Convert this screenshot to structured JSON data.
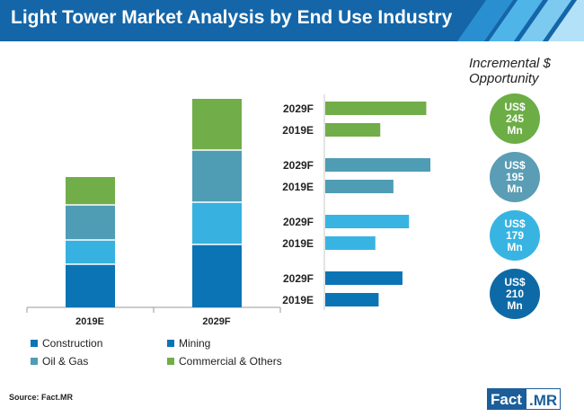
{
  "header": {
    "title": "Light Tower Market Analysis by End Use Industry"
  },
  "colors": {
    "header_bg": "#1466a8",
    "construction": "#0b74b5",
    "mining": "#0b74b5",
    "oil_gas": "#4f9cb5",
    "commercial": "#71ad48",
    "circle_commercial": "#6cad45",
    "circle_oilgas": "#5a9db5",
    "circle_mining": "#38b4e2",
    "circle_construction": "#0e6aa6"
  },
  "chart_data": [
    {
      "type": "bar",
      "stacked": true,
      "categories": [
        "2019E",
        "2029F"
      ],
      "series": [
        {
          "name": "Construction",
          "values": [
            48,
            70
          ]
        },
        {
          "name": "Mining",
          "values": [
            27,
            47
          ]
        },
        {
          "name": "Oil & Gas",
          "values": [
            39,
            58
          ]
        },
        {
          "name": "Commercial & Others",
          "values": [
            31,
            57
          ]
        }
      ],
      "xlabel": "",
      "ylabel": "",
      "ylim": [
        0,
        235
      ],
      "legend": [
        {
          "label": "Construction",
          "color": "#0b74b5"
        },
        {
          "label": "Mining",
          "color": "#0b74b5"
        },
        {
          "label": "Oil & Gas",
          "color": "#4f9cb5"
        },
        {
          "label": "Commercial & Others",
          "color": "#71ad48"
        }
      ]
    },
    {
      "type": "bar",
      "orientation": "horizontal",
      "groups": [
        {
          "segment": "Commercial & Others",
          "color": "#71ad48",
          "bars": [
            {
              "label": "2029F",
              "value": 123
            },
            {
              "label": "2019E",
              "value": 67
            }
          ]
        },
        {
          "segment": "Oil & Gas",
          "color": "#4f9cb5",
          "bars": [
            {
              "label": "2029F",
              "value": 128
            },
            {
              "label": "2019E",
              "value": 83
            }
          ]
        },
        {
          "segment": "Mining",
          "color": "#38b4e2",
          "bars": [
            {
              "label": "2029F",
              "value": 102
            },
            {
              "label": "2019E",
              "value": 61
            }
          ]
        },
        {
          "segment": "Construction",
          "color": "#0b74b5",
          "bars": [
            {
              "label": "2029F",
              "value": 94
            },
            {
              "label": "2019E",
              "value": 65
            }
          ]
        }
      ],
      "xlim": [
        0,
        140
      ]
    }
  ],
  "incremental": {
    "title": "Incremental $ Opportunity",
    "items": [
      {
        "line1": "US$",
        "line2": "245",
        "line3": "Mn",
        "color": "#6cad45"
      },
      {
        "line1": "US$",
        "line2": "195",
        "line3": "Mn",
        "color": "#5a9db5"
      },
      {
        "line1": "US$",
        "line2": "179",
        "line3": "Mn",
        "color": "#38b4e2"
      },
      {
        "line1": "US$",
        "line2": "210",
        "line3": "Mn",
        "color": "#0e6aa6"
      }
    ]
  },
  "footer": {
    "source": "Source: Fact.MR",
    "logo_left": "Fact",
    "logo_right": ".MR"
  }
}
